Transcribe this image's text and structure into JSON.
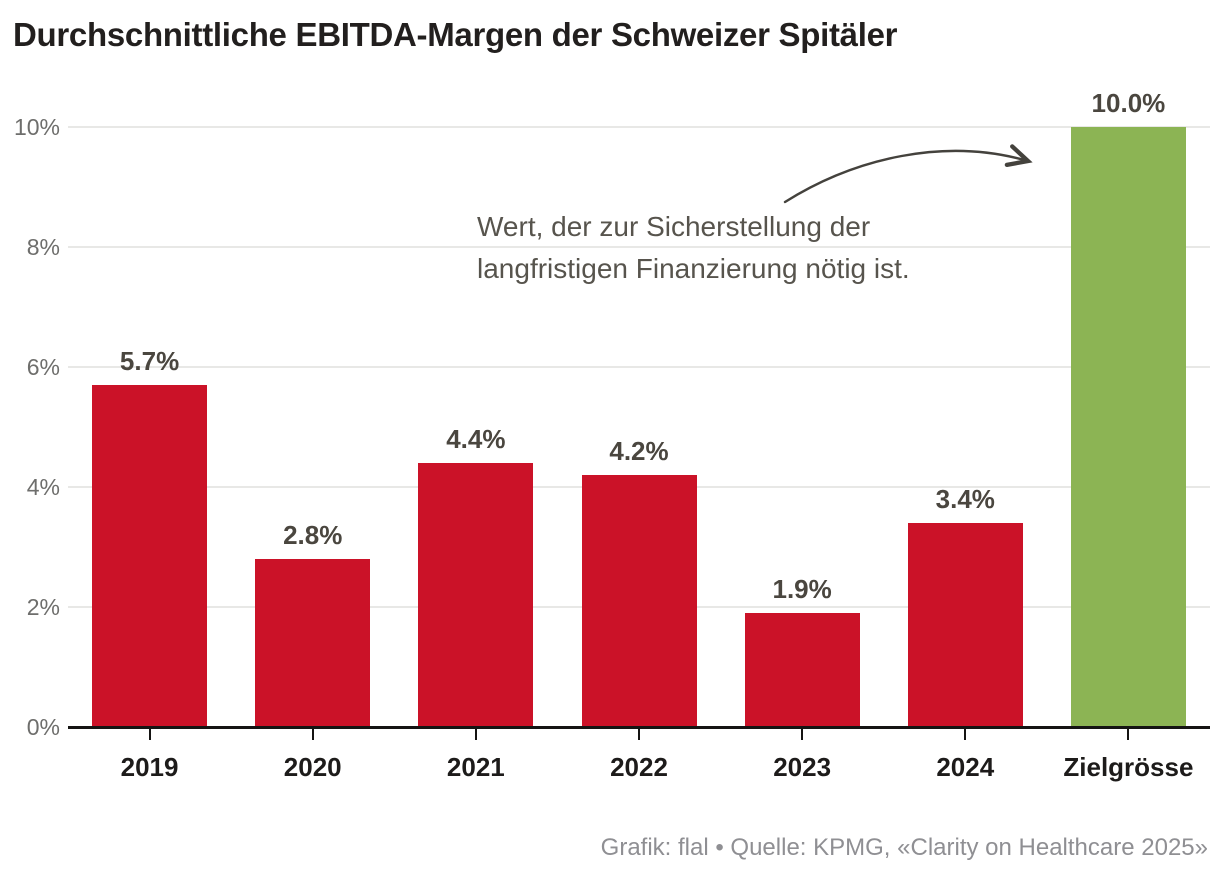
{
  "title": "Durchschnittliche EBITDA-Margen der Schweizer Spitäler",
  "footer": "Grafik: flal • Quelle: KPMG, «Clarity on Healthcare 2025»",
  "colors": {
    "bar_red": "#CB1228",
    "bar_green": "#8CB454",
    "gridline": "#e8e8e6",
    "axis": "#151413",
    "annotation_text": "#57544d",
    "arrow": "#44423d",
    "footer_text": "#8f8f93"
  },
  "chart_data": {
    "type": "bar",
    "title": "Durchschnittliche EBITDA-Margen der Schweizer Spitäler",
    "categories": [
      "2019",
      "2020",
      "2021",
      "2022",
      "2023",
      "2024",
      "Zielgrösse"
    ],
    "values": [
      5.7,
      2.8,
      4.4,
      4.2,
      1.9,
      3.4,
      10.0
    ],
    "value_labels": [
      "5.7%",
      "2.8%",
      "4.4%",
      "4.2%",
      "1.9%",
      "3.4%",
      "10.0%"
    ],
    "bar_colors": [
      "#CB1228",
      "#CB1228",
      "#CB1228",
      "#CB1228",
      "#CB1228",
      "#CB1228",
      "#8CB454"
    ],
    "xlabel": "",
    "ylabel": "",
    "ylim": [
      0,
      10
    ],
    "ytick_values": [
      0,
      2,
      4,
      6,
      8,
      10
    ],
    "ytick_labels": [
      "0%",
      "2%",
      "4%",
      "6%",
      "8%",
      "10%"
    ],
    "grid": "horizontal",
    "legend": false,
    "annotation": {
      "lines": [
        "Wert, der zur Sicherstellung der",
        "langfristigen Finanzierung nötig ist."
      ],
      "points_to": "Zielgrösse"
    }
  }
}
